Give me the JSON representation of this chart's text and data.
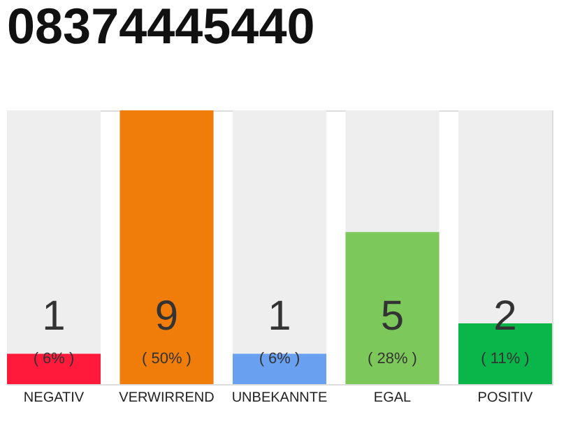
{
  "chart_data": {
    "type": "bar",
    "title": "08374445440",
    "categories": [
      "NEGATIV",
      "VERWIRREND",
      "UNBEKANNTE",
      "EGAL",
      "POSITIV"
    ],
    "values": [
      1,
      9,
      1,
      5,
      2
    ],
    "colors": [
      "#ff1a3c",
      "#f07d0a",
      "#6aa0f0",
      "#7dc85a",
      "#0ab54a"
    ],
    "ylim": [
      0,
      9
    ],
    "tick_labels": "x",
    "grid": false,
    "data_labels": true,
    "annotations": [
      "( 6% )",
      "( 50% )",
      "( 6% )",
      "( 28% )",
      "( 11% )"
    ]
  }
}
